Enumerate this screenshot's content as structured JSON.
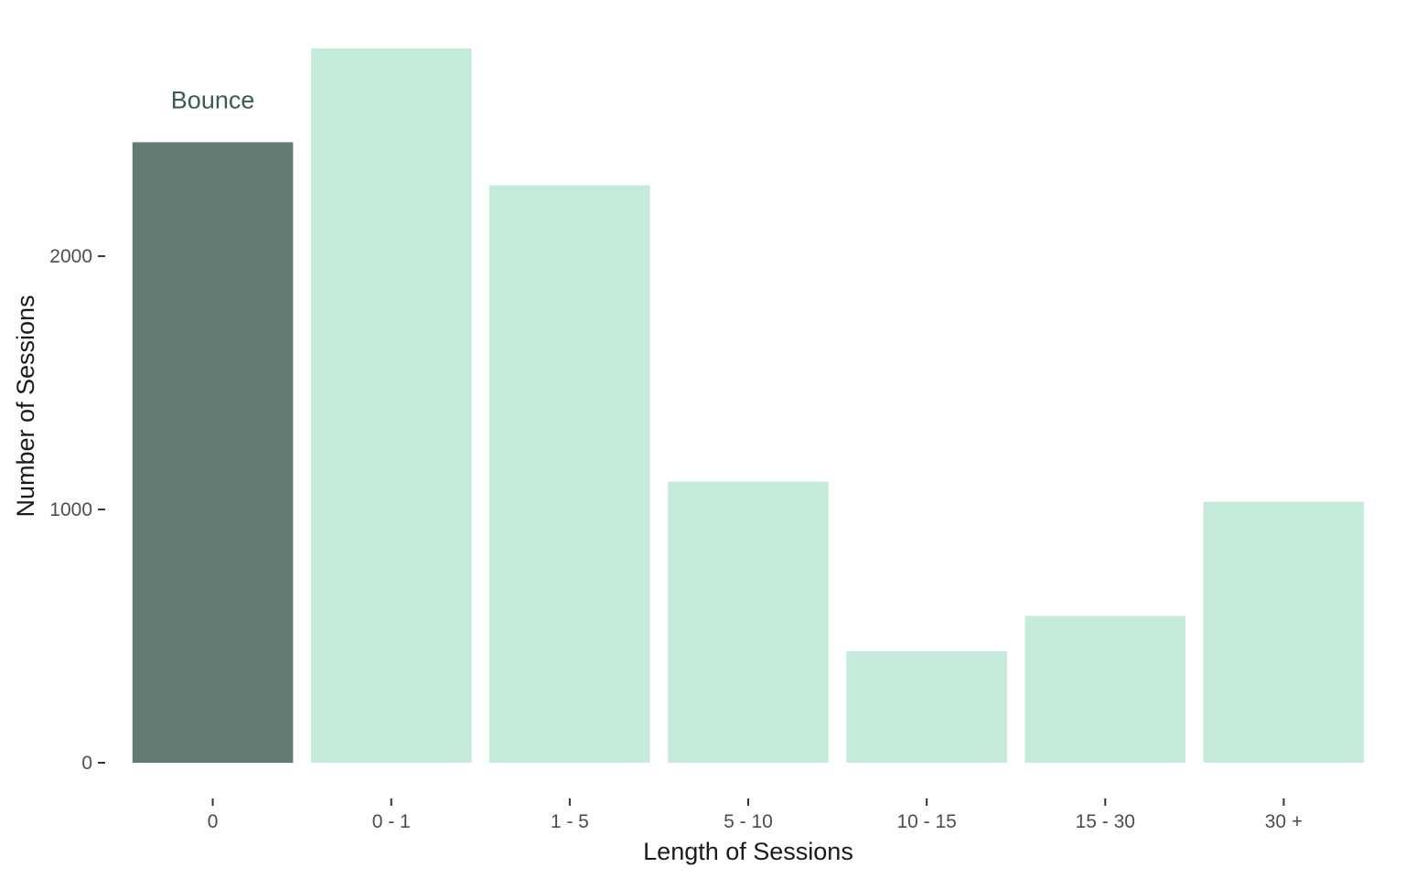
{
  "chart_data": {
    "type": "bar",
    "categories": [
      "0",
      "0 - 1",
      "1 - 5",
      "5 - 10",
      "10 - 15",
      "15 - 30",
      "30 +"
    ],
    "values": [
      2450,
      2820,
      2280,
      1110,
      440,
      580,
      1030
    ],
    "highlight_index": 0,
    "annotation": "Bounce",
    "title": "",
    "xlabel": "Length of Sessions",
    "ylabel": "Number of Sessions",
    "yticks": [
      0,
      1000,
      2000
    ],
    "ylim": [
      0,
      2820
    ],
    "grid": false,
    "colors": {
      "highlight": "#647a75",
      "default": "#c5ebdb"
    }
  }
}
